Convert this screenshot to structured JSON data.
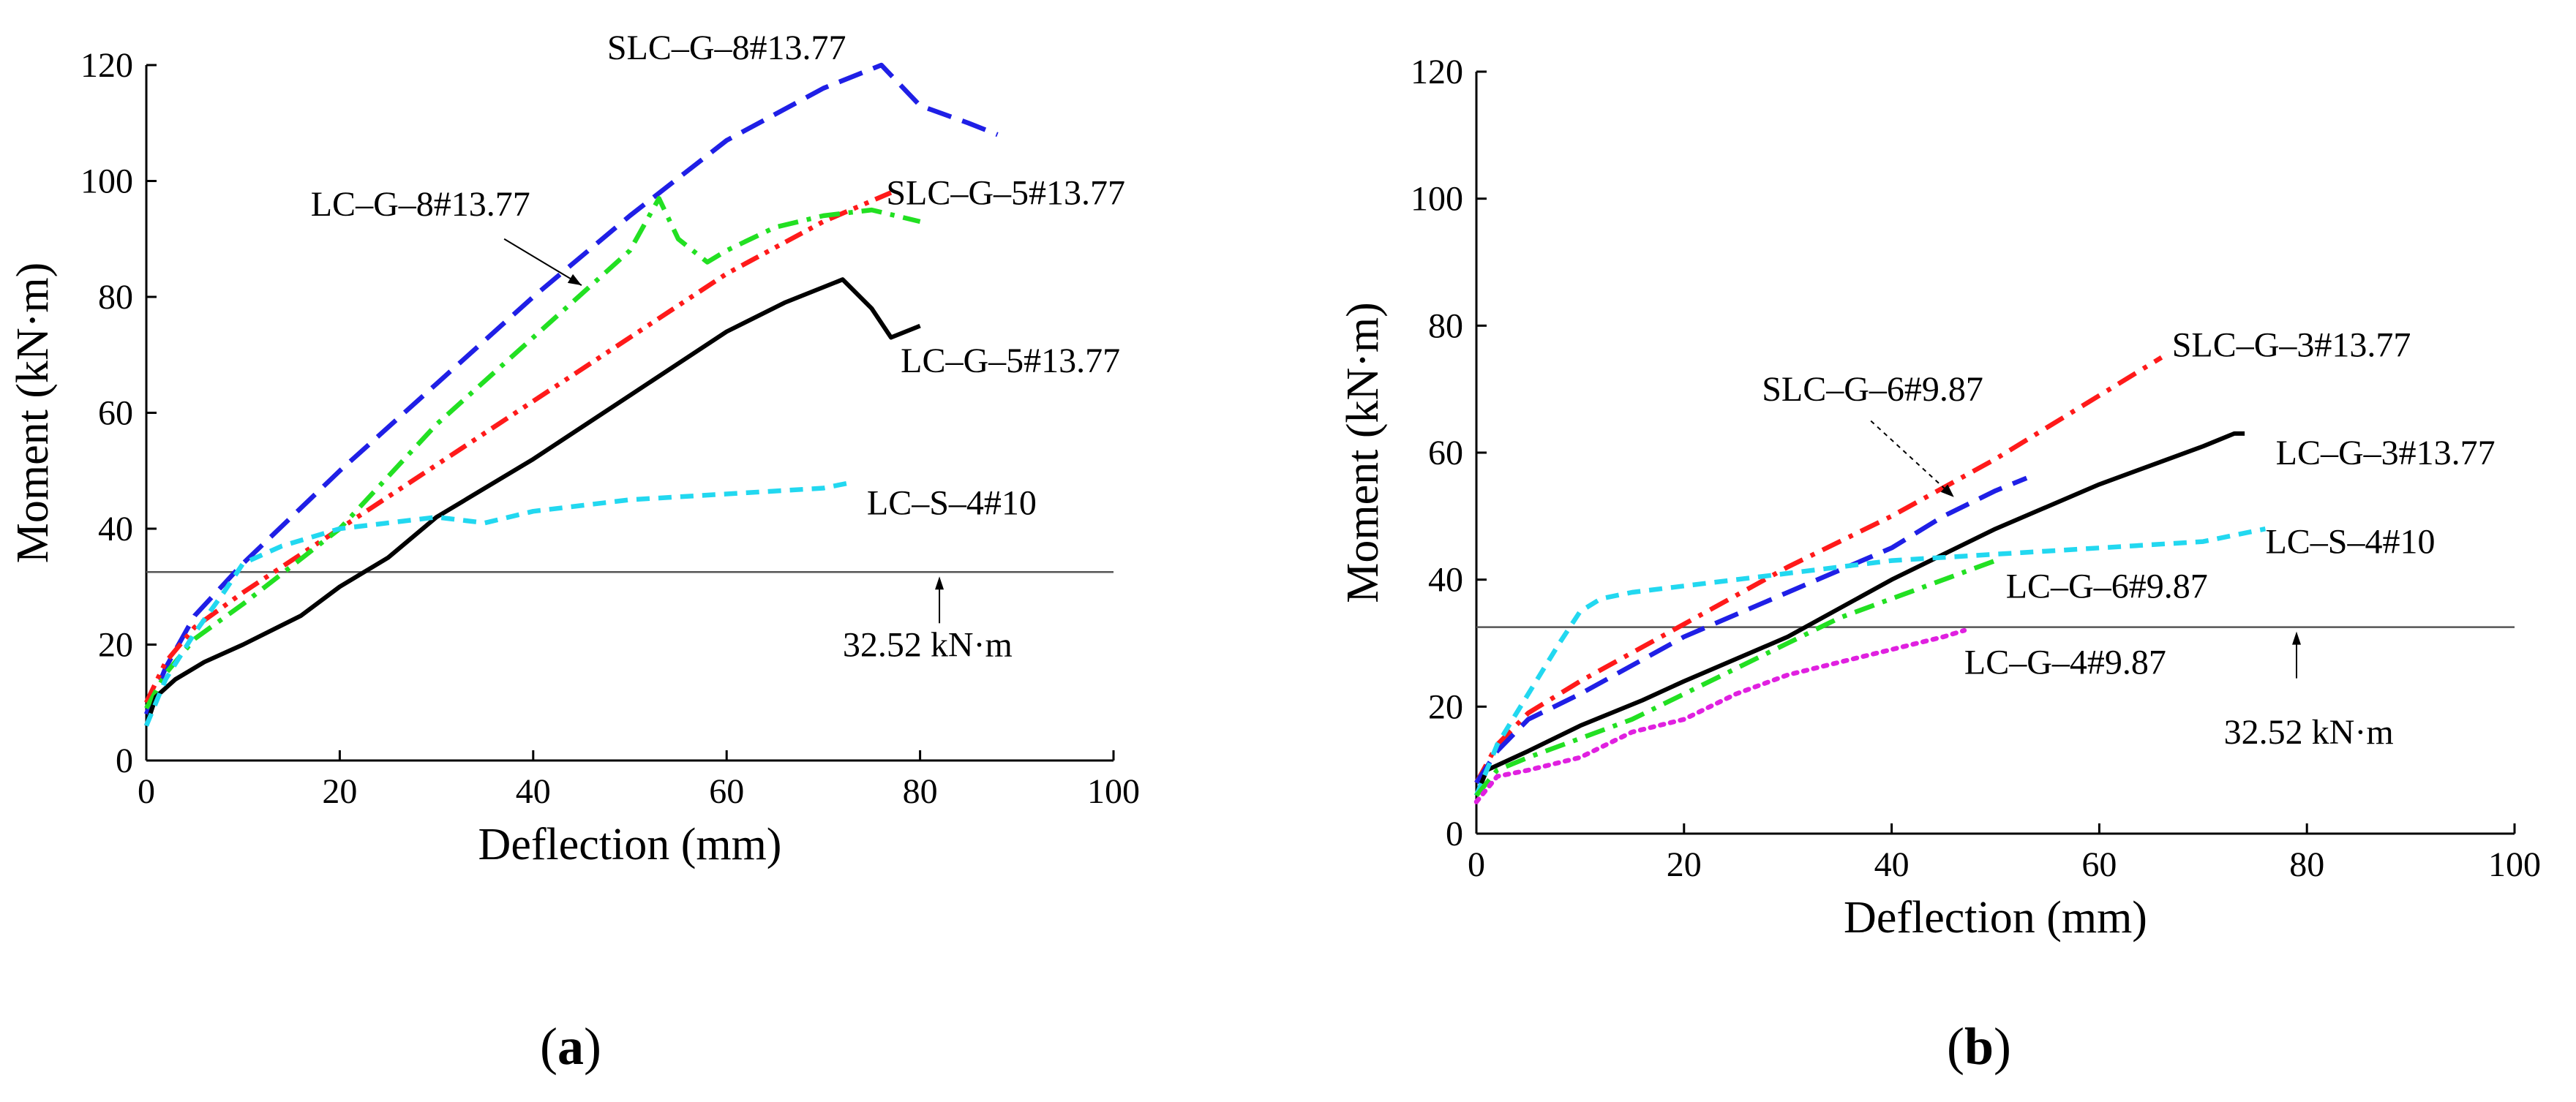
{
  "chart_data": [
    {
      "type": "line",
      "panel": "a",
      "caption": "(a)",
      "xlabel": "Deflection (mm)",
      "ylabel": "Moment (kN·m)",
      "xlim": [
        0,
        100
      ],
      "ylim": [
        0,
        120
      ],
      "xticks": [
        0,
        20,
        40,
        60,
        80,
        100
      ],
      "yticks": [
        0,
        20,
        40,
        60,
        80,
        100,
        120
      ],
      "reference": {
        "value": 32.52,
        "label": "32.52 kN·m",
        "label_x": 72,
        "label_y": 20,
        "arrow_x": 82
      },
      "series": [
        {
          "name": "SLC–G–8#13.77",
          "color": "#1f1fe6",
          "dash": "dash",
          "label_x": 60,
          "label_y": 123,
          "label_anchor": "middle",
          "x": [
            0,
            2,
            5,
            10,
            20,
            30,
            40,
            50,
            60,
            70,
            76,
            80,
            85,
            88
          ],
          "y": [
            8,
            16,
            25,
            34,
            50,
            65,
            80,
            94,
            107,
            116,
            120,
            113,
            110,
            108
          ]
        },
        {
          "name": "SLC–G–5#13.77",
          "color": "#ff1a1a",
          "dash": "dashdotdot",
          "label_x": 76.5,
          "label_y": 98,
          "label_anchor": "start",
          "x": [
            0,
            2,
            5,
            10,
            20,
            30,
            40,
            50,
            60,
            70,
            77
          ],
          "y": [
            10,
            17,
            23,
            29,
            40,
            51,
            62,
            73,
            84,
            93,
            98
          ]
        },
        {
          "name": "LC–G–8#13.77",
          "color": "#22e022",
          "dash": "dashdot",
          "label_x": 17,
          "label_y": 96,
          "label_anchor": "start",
          "leader": [
            [
              37,
              90
            ],
            [
              45,
              82
            ]
          ],
          "x": [
            0,
            2,
            5,
            10,
            20,
            30,
            40,
            50,
            53,
            55,
            58,
            60,
            65,
            70,
            75,
            80
          ],
          "y": [
            9,
            15,
            21,
            27,
            40,
            58,
            73,
            88,
            97,
            90,
            86,
            88,
            92,
            94,
            95,
            93
          ]
        },
        {
          "name": "LC–G–5#13.77",
          "color": "#000000",
          "dash": "solid",
          "label_x": 78,
          "label_y": 69,
          "label_anchor": "start",
          "x": [
            0,
            1,
            3,
            6,
            10,
            16,
            20,
            25,
            30,
            40,
            50,
            60,
            66,
            72,
            75,
            77,
            80
          ],
          "y": [
            6,
            11,
            14,
            17,
            20,
            25,
            30,
            35,
            42,
            52,
            63,
            74,
            79,
            83,
            78,
            73,
            75
          ]
        },
        {
          "name": "LC–S–4#10",
          "color": "#22d8f0",
          "dash": "shortdash",
          "label_x": 74.5,
          "label_y": 44.5,
          "label_anchor": "start",
          "x": [
            0,
            2,
            5,
            8,
            10,
            14,
            20,
            30,
            35,
            40,
            50,
            60,
            70,
            73
          ],
          "y": [
            6,
            14,
            22,
            29,
            34,
            37,
            40,
            42,
            41,
            43,
            45,
            46,
            47,
            48
          ]
        }
      ]
    },
    {
      "type": "line",
      "panel": "b",
      "caption": "(b)",
      "xlabel": "Deflection (mm)",
      "ylabel": "Moment (kN·m)",
      "xlim": [
        0,
        100
      ],
      "ylim": [
        0,
        120
      ],
      "xticks": [
        0,
        20,
        40,
        60,
        80,
        100
      ],
      "yticks": [
        0,
        20,
        40,
        60,
        80,
        100,
        120
      ],
      "reference": {
        "value": 32.52,
        "label": "32.52 kN·m",
        "label_x": 72,
        "label_y": 16,
        "arrow_x": 79
      },
      "series": [
        {
          "name": "SLC–G–3#13.77",
          "color": "#ff1a1a",
          "dash": "dashdot",
          "label_x": 67,
          "label_y": 77,
          "label_anchor": "start",
          "x": [
            0,
            2,
            5,
            10,
            20,
            30,
            40,
            50,
            60,
            66
          ],
          "y": [
            8,
            14,
            19,
            24,
            33,
            42,
            50,
            59,
            69,
            75
          ]
        },
        {
          "name": "SLC–G–6#9.87",
          "color": "#1f1fe6",
          "dash": "dash",
          "label_x": 27.5,
          "label_y": 70,
          "label_anchor": "start",
          "leader": [
            [
              38,
              65
            ],
            [
              46,
              53
            ]
          ],
          "x": [
            0,
            2,
            5,
            10,
            20,
            30,
            40,
            45,
            50,
            53
          ],
          "y": [
            8,
            13,
            18,
            22,
            31,
            38,
            45,
            50,
            54,
            56
          ]
        },
        {
          "name": "LC–G–3#13.77",
          "color": "#000000",
          "dash": "solid",
          "label_x": 77,
          "label_y": 60,
          "label_anchor": "start",
          "x": [
            0,
            1,
            5,
            10,
            16,
            20,
            30,
            40,
            50,
            60,
            70,
            73,
            74
          ],
          "y": [
            6,
            10,
            13,
            17,
            21,
            24,
            31,
            40,
            48,
            55,
            61,
            63,
            63
          ]
        },
        {
          "name": "LC–S–4#10",
          "color": "#22d8f0",
          "dash": "shortdash",
          "label_x": 76,
          "label_y": 46,
          "label_anchor": "start",
          "x": [
            0,
            2,
            5,
            8,
            10,
            12,
            15,
            20,
            25,
            30,
            35,
            40,
            50,
            60,
            70,
            76
          ],
          "y": [
            6,
            14,
            22,
            30,
            35,
            37,
            38,
            39,
            40,
            41,
            42,
            43,
            44,
            45,
            46,
            48
          ]
        },
        {
          "name": "LC–G–6#9.87",
          "color": "#22e022",
          "dash": "dashdot",
          "label_x": 51,
          "label_y": 39,
          "label_anchor": "start",
          "x": [
            0,
            2,
            5,
            10,
            15,
            20,
            25,
            30,
            35,
            40,
            45,
            50
          ],
          "y": [
            6,
            10,
            12,
            15,
            18,
            22,
            26,
            30,
            34,
            37,
            40,
            43
          ]
        },
        {
          "name": "LC–G–4#9.87",
          "color": "#e020e0",
          "dash": "dot",
          "label_x": 47,
          "label_y": 27,
          "label_anchor": "start",
          "x": [
            0,
            2,
            5,
            10,
            15,
            20,
            25,
            30,
            35,
            40,
            45,
            47
          ],
          "y": [
            5,
            9,
            10,
            12,
            16,
            18,
            22,
            25,
            27,
            29,
            31,
            32
          ]
        }
      ]
    }
  ]
}
